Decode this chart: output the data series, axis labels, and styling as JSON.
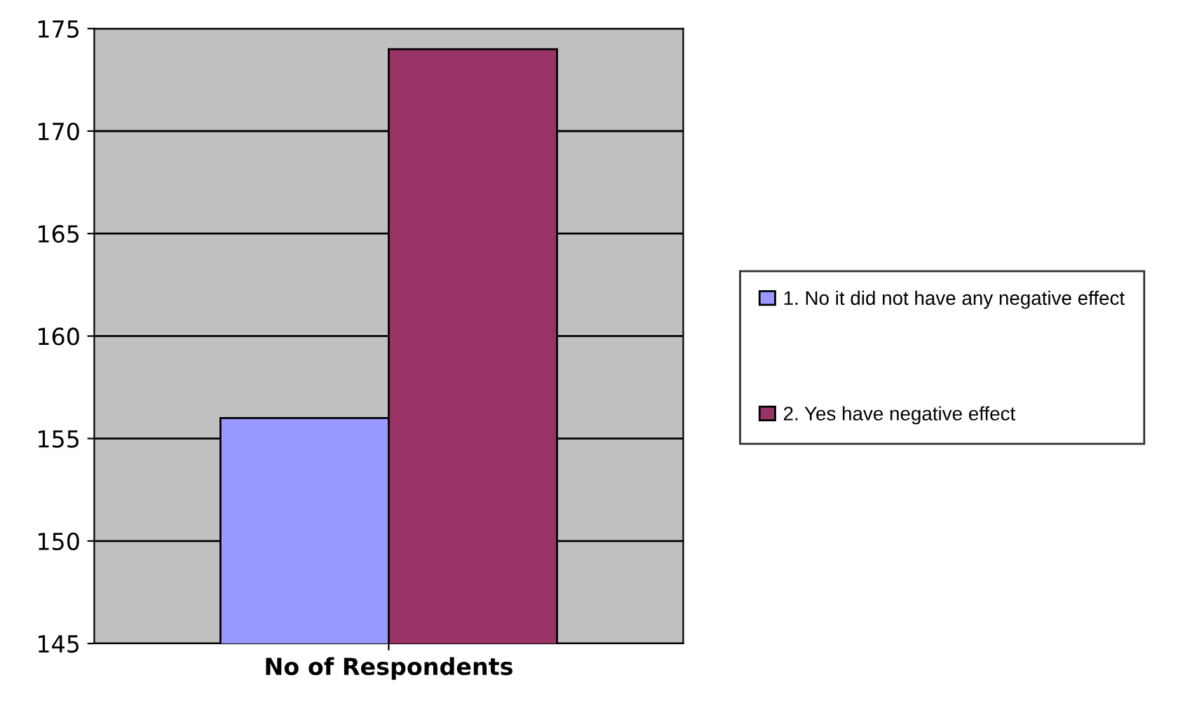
{
  "chart_data": {
    "type": "bar",
    "categories": [
      "No of Respondents"
    ],
    "series": [
      {
        "name": "1. No it did not have any negative effect",
        "color": "#9999ff",
        "values": [
          156
        ]
      },
      {
        "name": "2. Yes have negative effect",
        "color": "#993366",
        "values": [
          174
        ]
      }
    ],
    "ylim": [
      145,
      175
    ],
    "yticks": [
      145,
      150,
      155,
      160,
      165,
      170,
      175
    ],
    "grid": "y",
    "legend": "right"
  }
}
